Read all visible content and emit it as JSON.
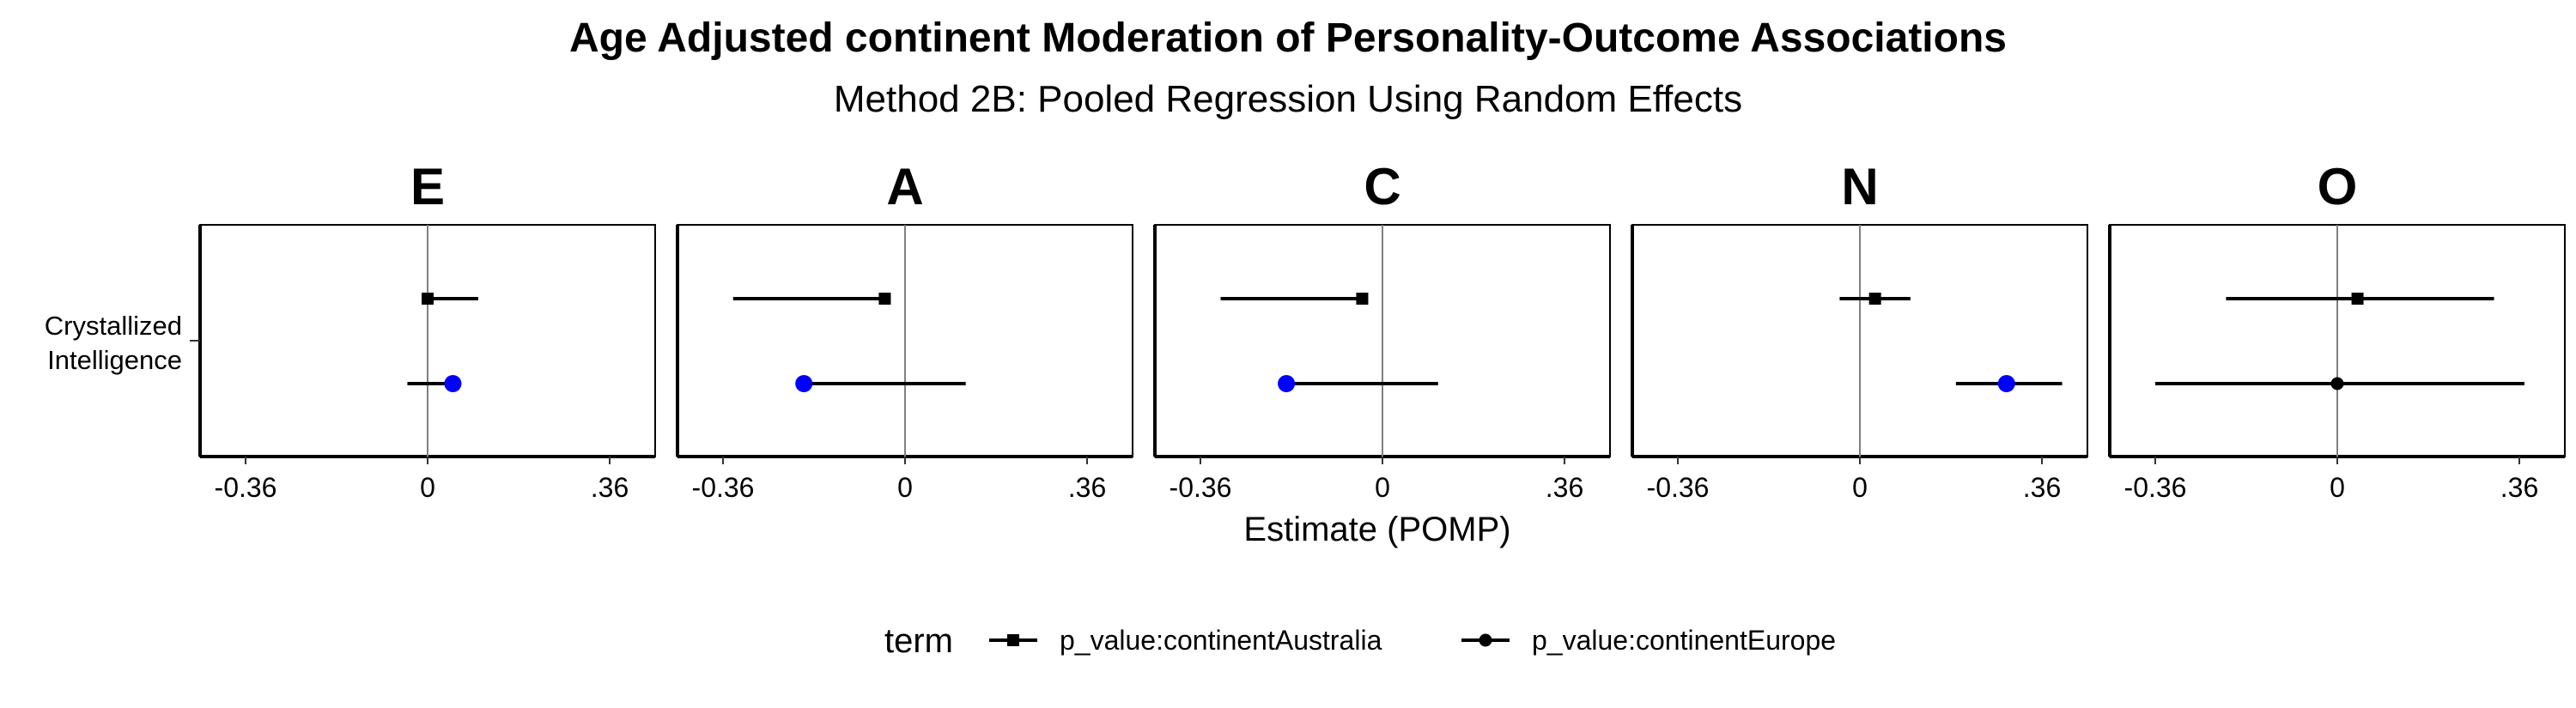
{
  "chart_data": {
    "type": "forest",
    "title": "Age Adjusted continent Moderation of Personality-Outcome Associations",
    "subtitle": "Method 2B: Pooled Regression Using Random Effects",
    "xlabel": "Estimate (POMP)",
    "xlim": [
      -0.45,
      0.45
    ],
    "x_ticks": [
      {
        "value": -0.36,
        "label": "-0.36"
      },
      {
        "value": 0,
        "label": "0"
      },
      {
        "value": 0.36,
        "label": ".36"
      }
    ],
    "y_categories": [
      "Crystallized Intelligence"
    ],
    "y_label_lines": [
      "Crystallized",
      "Intelligence"
    ],
    "grid": false,
    "reference_line": 0,
    "legend": {
      "title": "term",
      "position": "bottom",
      "entries": [
        {
          "label": "p_value:continentAustralia",
          "shape": "square"
        },
        {
          "label": "p_value:continentEurope",
          "shape": "circle"
        }
      ]
    },
    "highlight_color": "#0000ff",
    "default_color": "#000000",
    "panels": [
      {
        "label": "E",
        "rows": [
          {
            "term": "p_value:continentAustralia",
            "estimate": 0.0,
            "lower": 0.0,
            "upper": 0.1,
            "significant": false
          },
          {
            "term": "p_value:continentEurope",
            "estimate": 0.05,
            "lower": -0.04,
            "upper": 0.05,
            "significant": true
          }
        ]
      },
      {
        "label": "A",
        "rows": [
          {
            "term": "p_value:continentAustralia",
            "estimate": -0.04,
            "lower": -0.34,
            "upper": -0.04,
            "significant": false
          },
          {
            "term": "p_value:continentEurope",
            "estimate": -0.2,
            "lower": -0.2,
            "upper": 0.12,
            "significant": true
          }
        ]
      },
      {
        "label": "C",
        "rows": [
          {
            "term": "p_value:continentAustralia",
            "estimate": -0.04,
            "lower": -0.32,
            "upper": -0.04,
            "significant": false
          },
          {
            "term": "p_value:continentEurope",
            "estimate": -0.19,
            "lower": -0.19,
            "upper": 0.11,
            "significant": true
          }
        ]
      },
      {
        "label": "N",
        "rows": [
          {
            "term": "p_value:continentAustralia",
            "estimate": 0.03,
            "lower": -0.04,
            "upper": 0.1,
            "significant": false
          },
          {
            "term": "p_value:continentEurope",
            "estimate": 0.29,
            "lower": 0.19,
            "upper": 0.4,
            "significant": true
          }
        ]
      },
      {
        "label": "O",
        "rows": [
          {
            "term": "p_value:continentAustralia",
            "estimate": 0.04,
            "lower": -0.22,
            "upper": 0.31,
            "significant": false
          },
          {
            "term": "p_value:continentEurope",
            "estimate": 0.0,
            "lower": -0.36,
            "upper": 0.37,
            "significant": false
          }
        ]
      }
    ]
  }
}
